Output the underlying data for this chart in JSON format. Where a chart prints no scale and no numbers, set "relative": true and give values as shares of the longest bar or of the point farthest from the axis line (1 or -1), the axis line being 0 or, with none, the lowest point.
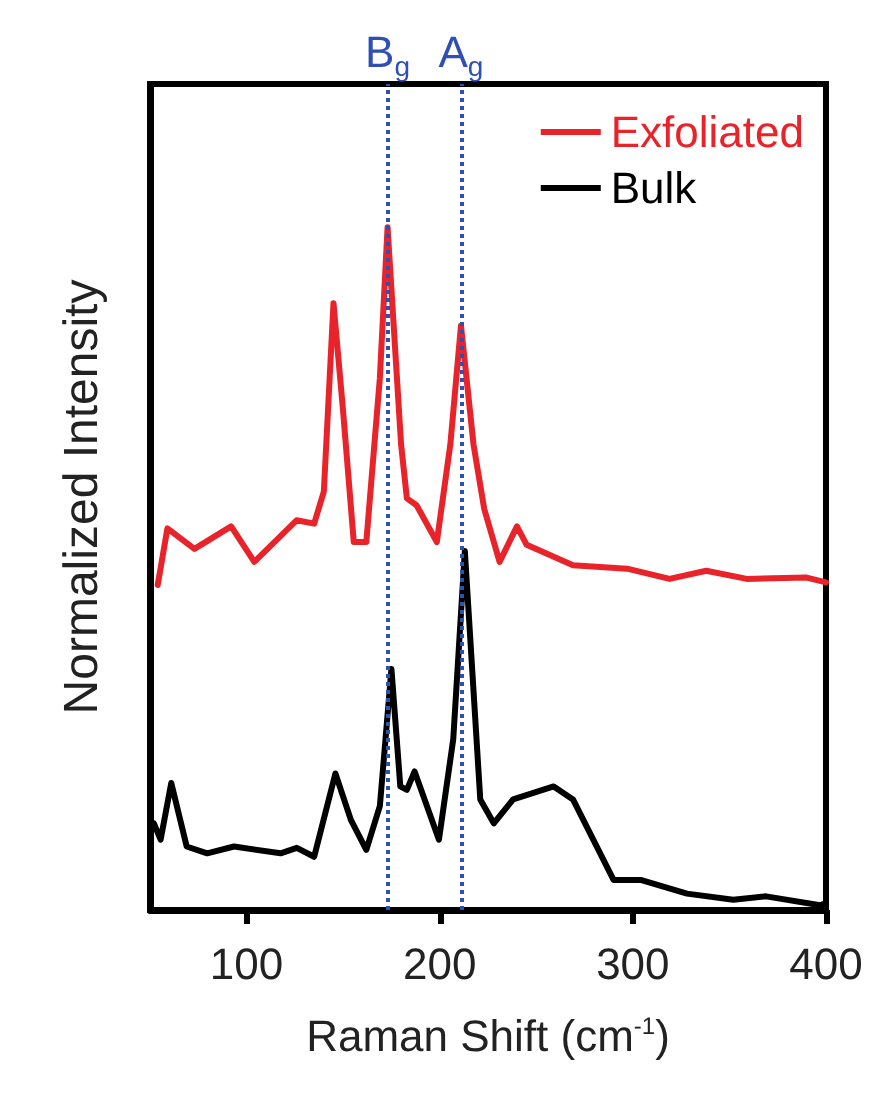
{
  "chart_data": {
    "type": "line",
    "relative": true,
    "xlabel": "Raman Shift (cm$^{-1}$)",
    "ylabel": "Normalized Intensity",
    "xlim": [
      50,
      400
    ],
    "xticks": [
      100,
      200,
      300,
      400
    ],
    "grid": false,
    "legend": "top right",
    "marker": "none",
    "line_style": "solid",
    "tick_labels": "x",
    "series": [
      {
        "name": "Exfoliated",
        "color": "#e8232a",
        "x": [
          54,
          59,
          73,
          92,
          104,
          126,
          135,
          140,
          145,
          150,
          155.5,
          162,
          169,
          173,
          180,
          183,
          188,
          198.5,
          205.5,
          211,
          217.5,
          223,
          231,
          240,
          245,
          269,
          297,
          319,
          338,
          359,
          390,
          400
        ],
        "values": [
          0.476,
          0.559,
          0.529,
          0.562,
          0.51,
          0.571,
          0.566,
          0.613,
          0.889,
          0.73,
          0.539,
          0.539,
          0.779,
          1,
          0.682,
          0.603,
          0.593,
          0.539,
          0.682,
          0.856,
          0.682,
          0.588,
          0.51,
          0.562,
          0.535,
          0.505,
          0.5,
          0.485,
          0.497,
          0.485,
          0.487,
          0.48
        ]
      },
      {
        "name": "Bulk",
        "color": "#000000",
        "x": [
          52,
          55.5,
          61,
          69,
          79.6,
          93.5,
          117.6,
          126,
          135,
          146,
          154,
          162,
          169,
          175,
          179.6,
          183,
          187,
          199.6,
          207,
          213,
          221,
          228,
          238,
          259,
          269,
          290,
          304,
          328,
          352,
          369,
          397,
          400
        ],
        "values": [
          0.127,
          0.103,
          0.186,
          0.093,
          0.083,
          0.093,
          0.083,
          0.091,
          0.078,
          0.2,
          0.132,
          0.088,
          0.152,
          0.353,
          0.181,
          0.176,
          0.203,
          0.103,
          0.25,
          0.526,
          0.162,
          0.127,
          0.162,
          0.181,
          0.162,
          0.044,
          0.044,
          0.024,
          0.015,
          0.02,
          0.007,
          0.01
        ]
      }
    ],
    "ref_lines": [
      {
        "axis": "x",
        "value": 173,
        "label": "B$_{g}$",
        "color": "#2f4fb5",
        "line_style": "dotted"
      },
      {
        "axis": "x",
        "value": 211,
        "label": "A$_{g}$",
        "color": "#2f4fb5",
        "line_style": "dotted"
      }
    ]
  }
}
